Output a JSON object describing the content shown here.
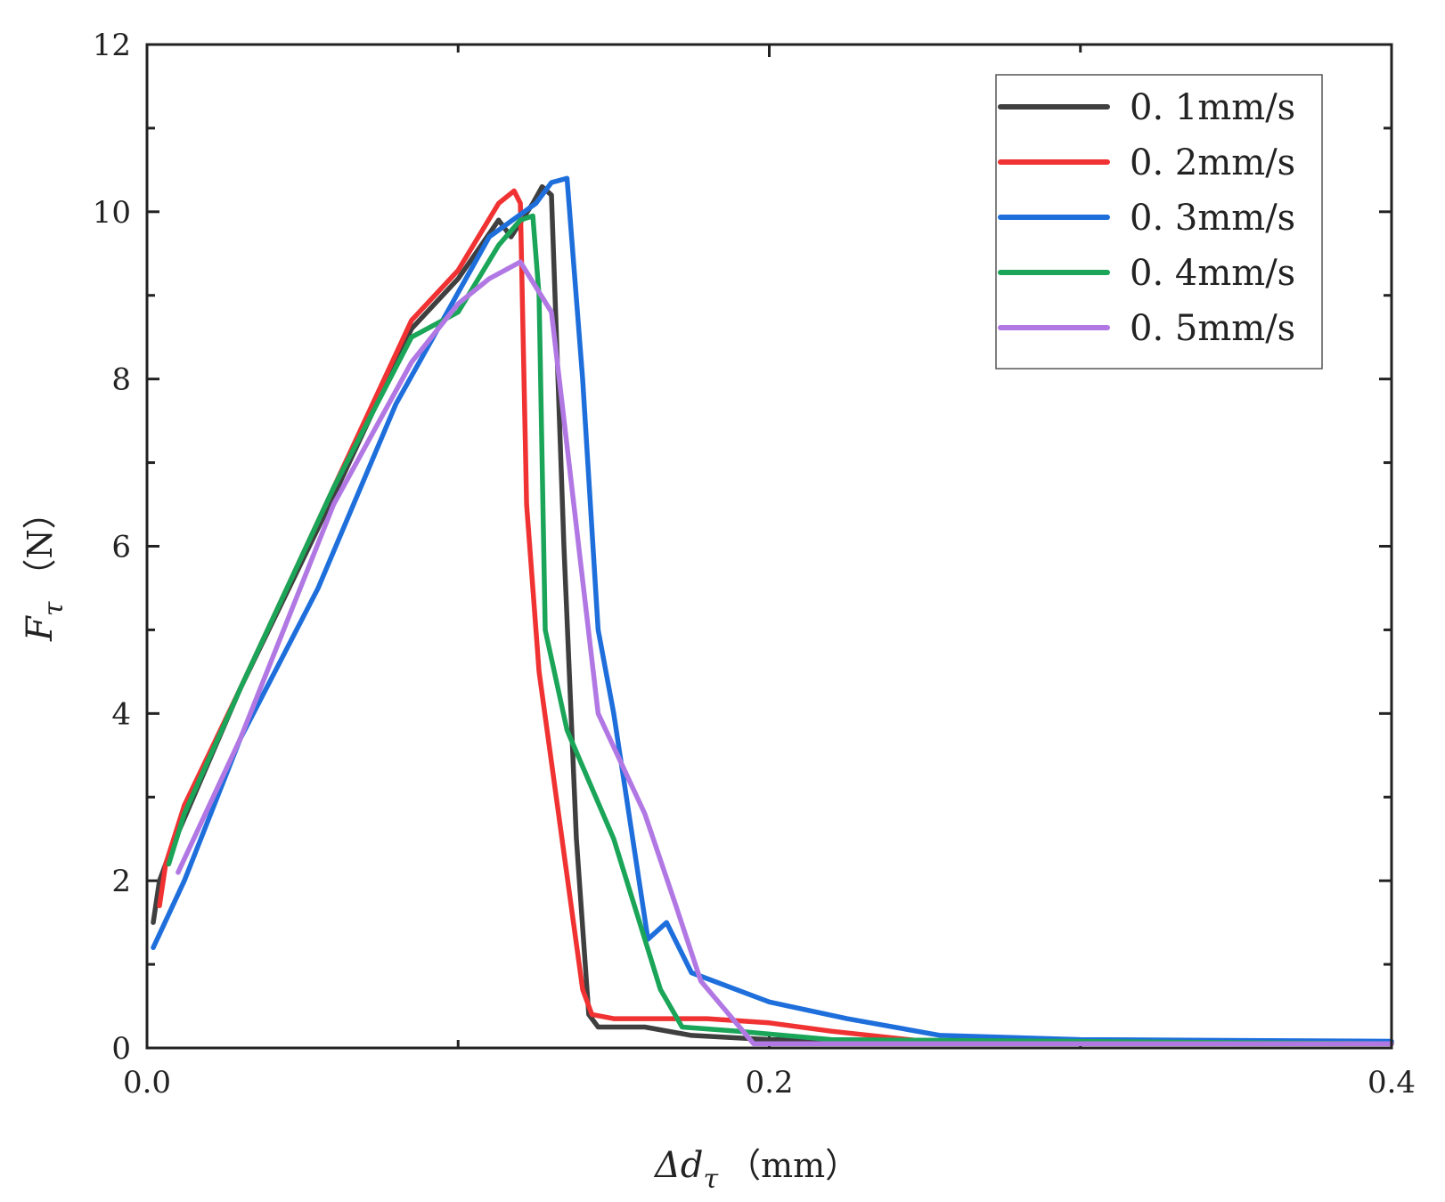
{
  "chart_data": {
    "type": "line",
    "title": "",
    "x_axis": {
      "symbol": "Δd",
      "subscript": "τ",
      "unit": "（mm）",
      "range": [
        0.0,
        0.4
      ],
      "tick_values": [
        0.0,
        0.2,
        0.4
      ],
      "tick_labels": [
        "0.0",
        "0.2",
        "0.4"
      ],
      "minor_ticks": [
        0.1,
        0.3
      ]
    },
    "y_axis": {
      "symbol": "F",
      "subscript": "τ",
      "unit": "（N）",
      "range": [
        0,
        12
      ],
      "tick_values": [
        0,
        2,
        4,
        6,
        8,
        10,
        12
      ],
      "tick_labels": [
        "0",
        "2",
        "4",
        "6",
        "8",
        "10",
        "12"
      ],
      "minor_ticks": [
        1,
        3,
        5,
        7,
        9,
        11
      ]
    },
    "grid": false,
    "legend_position": "top-right",
    "series": [
      {
        "name": "0.1mm/s",
        "label": "0. 1mm/s",
        "color": "#3f3f3f",
        "points": [
          [
            0.002,
            1.5
          ],
          [
            0.004,
            2.0
          ],
          [
            0.008,
            2.4
          ],
          [
            0.03,
            4.3
          ],
          [
            0.06,
            6.6
          ],
          [
            0.085,
            8.6
          ],
          [
            0.1,
            9.2
          ],
          [
            0.113,
            9.9
          ],
          [
            0.117,
            9.7
          ],
          [
            0.124,
            10.1
          ],
          [
            0.127,
            10.3
          ],
          [
            0.13,
            10.2
          ],
          [
            0.134,
            6.0
          ],
          [
            0.138,
            2.5
          ],
          [
            0.142,
            0.4
          ],
          [
            0.145,
            0.25
          ],
          [
            0.16,
            0.25
          ],
          [
            0.175,
            0.15
          ],
          [
            0.2,
            0.1
          ],
          [
            0.3,
            0.08
          ],
          [
            0.4,
            0.07
          ]
        ]
      },
      {
        "name": "0.2mm/s",
        "label": "0. 2mm/s",
        "color": "#f03232",
        "points": [
          [
            0.004,
            1.7
          ],
          [
            0.006,
            2.2
          ],
          [
            0.012,
            2.9
          ],
          [
            0.03,
            4.3
          ],
          [
            0.06,
            6.7
          ],
          [
            0.085,
            8.7
          ],
          [
            0.1,
            9.3
          ],
          [
            0.113,
            10.1
          ],
          [
            0.118,
            10.25
          ],
          [
            0.12,
            10.1
          ],
          [
            0.122,
            6.5
          ],
          [
            0.126,
            4.5
          ],
          [
            0.14,
            0.7
          ],
          [
            0.143,
            0.4
          ],
          [
            0.15,
            0.35
          ],
          [
            0.18,
            0.35
          ],
          [
            0.2,
            0.3
          ],
          [
            0.22,
            0.2
          ],
          [
            0.25,
            0.08
          ],
          [
            0.4,
            0.05
          ]
        ]
      },
      {
        "name": "0.3mm/s",
        "label": "0. 3mm/s",
        "color": "#1e6fdc",
        "points": [
          [
            0.002,
            1.2
          ],
          [
            0.012,
            2.0
          ],
          [
            0.03,
            3.7
          ],
          [
            0.055,
            5.5
          ],
          [
            0.08,
            7.7
          ],
          [
            0.095,
            8.7
          ],
          [
            0.11,
            9.7
          ],
          [
            0.125,
            10.1
          ],
          [
            0.13,
            10.35
          ],
          [
            0.135,
            10.4
          ],
          [
            0.14,
            8.0
          ],
          [
            0.145,
            5.0
          ],
          [
            0.15,
            4.0
          ],
          [
            0.161,
            1.3
          ],
          [
            0.167,
            1.5
          ],
          [
            0.175,
            0.9
          ],
          [
            0.2,
            0.55
          ],
          [
            0.225,
            0.35
          ],
          [
            0.255,
            0.15
          ],
          [
            0.3,
            0.1
          ],
          [
            0.4,
            0.08
          ]
        ]
      },
      {
        "name": "0.4mm/s",
        "label": "0. 4mm/s",
        "color": "#1aa558",
        "points": [
          [
            0.007,
            2.2
          ],
          [
            0.012,
            2.8
          ],
          [
            0.03,
            4.3
          ],
          [
            0.06,
            6.7
          ],
          [
            0.085,
            8.5
          ],
          [
            0.1,
            8.8
          ],
          [
            0.113,
            9.6
          ],
          [
            0.12,
            9.9
          ],
          [
            0.124,
            9.95
          ],
          [
            0.126,
            9.0
          ],
          [
            0.128,
            5.0
          ],
          [
            0.135,
            3.8
          ],
          [
            0.15,
            2.5
          ],
          [
            0.165,
            0.7
          ],
          [
            0.172,
            0.25
          ],
          [
            0.19,
            0.2
          ],
          [
            0.22,
            0.1
          ],
          [
            0.4,
            0.05
          ]
        ]
      },
      {
        "name": "0.5mm/s",
        "label": "0. 5mm/s",
        "color": "#b178e4",
        "points": [
          [
            0.01,
            2.1
          ],
          [
            0.03,
            3.7
          ],
          [
            0.06,
            6.5
          ],
          [
            0.085,
            8.2
          ],
          [
            0.1,
            8.9
          ],
          [
            0.11,
            9.2
          ],
          [
            0.12,
            9.4
          ],
          [
            0.13,
            8.8
          ],
          [
            0.145,
            4.0
          ],
          [
            0.16,
            2.8
          ],
          [
            0.17,
            1.7
          ],
          [
            0.178,
            0.8
          ],
          [
            0.195,
            0.05
          ],
          [
            0.4,
            0.05
          ]
        ]
      }
    ]
  }
}
